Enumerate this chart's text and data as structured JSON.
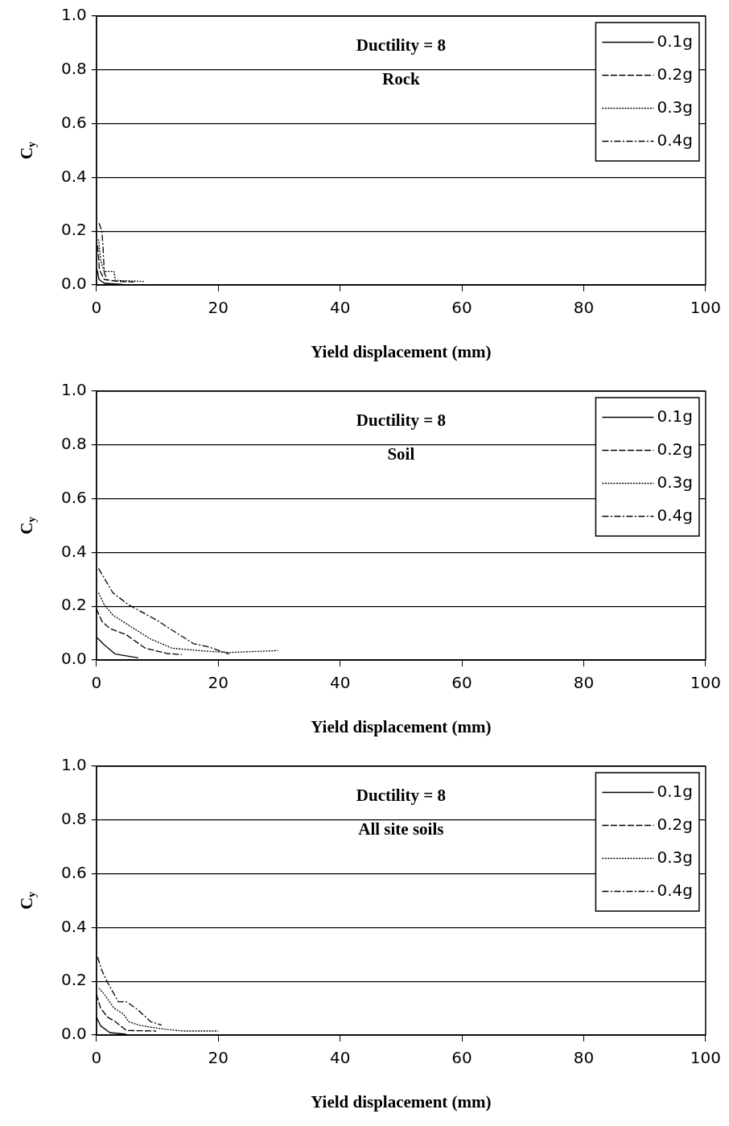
{
  "chart_data": [
    {
      "type": "line",
      "xlabel": "Yield displacement (mm)",
      "ylabel": "C$_{y}$",
      "annotations": [
        "Ductility = 8",
        "Rock"
      ],
      "xlim": [
        0,
        100
      ],
      "xticks": [
        0,
        20,
        40,
        60,
        80,
        100
      ],
      "ylim": [
        0,
        1
      ],
      "yticks": [
        {
          "value": 0,
          "label": "0.0"
        },
        {
          "value": 0.2,
          "label": "0.2"
        },
        {
          "value": 0.4,
          "label": "0.4"
        },
        {
          "value": 0.6,
          "label": "0.6"
        },
        {
          "value": 0.8,
          "label": "0.8"
        },
        {
          "value": 1,
          "label": "1.0"
        }
      ],
      "grid": "y",
      "legend": "top right",
      "marker": "none",
      "series": [
        {
          "name": "0.1g",
          "color": "#000000",
          "line_style": "solid",
          "x": [
            0.13,
            0.44,
            1.3,
            4.4
          ],
          "values": [
            0.056,
            0.02,
            0.006,
            0.002
          ]
        },
        {
          "name": "0.2g",
          "color": "#000000",
          "line_style": "dashed",
          "x": [
            0.2,
            0.5,
            1.3,
            3.6,
            6.2
          ],
          "values": [
            0.146,
            0.056,
            0.02,
            0.013,
            0.011
          ]
        },
        {
          "name": "0.3g",
          "color": "#000000",
          "line_style": "dotted",
          "x": [
            0.36,
            0.7,
            1.3,
            2.9,
            3.1,
            7.8
          ],
          "values": [
            0.17,
            0.09,
            0.05,
            0.05,
            0.017,
            0.013
          ]
        },
        {
          "name": "0.4g",
          "color": "#000000",
          "line_style": "dashdot",
          "x": [
            0.44,
            0.9,
            1.1,
            1.3,
            1.8
          ],
          "values": [
            0.23,
            0.2,
            0.135,
            0.045,
            0.017
          ]
        }
      ]
    },
    {
      "type": "line",
      "xlabel": "Yield displacement (mm)",
      "ylabel": "C$_{y}$",
      "annotations": [
        "Ductility = 8",
        "Soil"
      ],
      "xlim": [
        0,
        100
      ],
      "xticks": [
        0,
        20,
        40,
        60,
        80,
        100
      ],
      "ylim": [
        0,
        1
      ],
      "yticks": [
        {
          "value": 0,
          "label": "0.0"
        },
        {
          "value": 0.2,
          "label": "0.2"
        },
        {
          "value": 0.4,
          "label": "0.4"
        },
        {
          "value": 0.6,
          "label": "0.6"
        },
        {
          "value": 0.8,
          "label": "0.8"
        },
        {
          "value": 1,
          "label": "1.0"
        }
      ],
      "grid": "y",
      "legend": "top right",
      "marker": "none",
      "series": [
        {
          "name": "0.1g",
          "color": "#000000",
          "line_style": "solid",
          "x": [
            0.1,
            1.3,
            3.1,
            6.9
          ],
          "values": [
            0.083,
            0.056,
            0.022,
            0.008
          ]
        },
        {
          "name": "0.2g",
          "color": "#000000",
          "line_style": "dashed",
          "x": [
            0,
            0.9,
            2.2,
            4.9,
            8,
            11.6,
            14
          ],
          "values": [
            0.19,
            0.144,
            0.117,
            0.094,
            0.044,
            0.024,
            0.02
          ]
        },
        {
          "name": "0.3g",
          "color": "#000000",
          "line_style": "dotted",
          "x": [
            0.36,
            1.3,
            2.7,
            5.8,
            8.9,
            12.4,
            17.8,
            21.8,
            29.8
          ],
          "values": [
            0.25,
            0.205,
            0.167,
            0.122,
            0.078,
            0.044,
            0.033,
            0.028,
            0.035
          ]
        },
        {
          "name": "0.4g",
          "color": "#000000",
          "line_style": "dashdot",
          "x": [
            0.36,
            2.7,
            5.3,
            10,
            11.8,
            16,
            18.2,
            21.8
          ],
          "values": [
            0.34,
            0.25,
            0.205,
            0.147,
            0.12,
            0.06,
            0.05,
            0.022
          ]
        }
      ]
    },
    {
      "type": "line",
      "xlabel": "Yield displacement (mm)",
      "ylabel": "C$_{y}$",
      "annotations": [
        "Ductility = 8",
        "All site soils"
      ],
      "xlim": [
        0,
        100
      ],
      "xticks": [
        0,
        20,
        40,
        60,
        80,
        100
      ],
      "ylim": [
        0,
        1
      ],
      "yticks": [
        {
          "value": 0,
          "label": "0.0"
        },
        {
          "value": 0.2,
          "label": "0.2"
        },
        {
          "value": 0.4,
          "label": "0.4"
        },
        {
          "value": 0.6,
          "label": "0.6"
        },
        {
          "value": 0.8,
          "label": "0.8"
        },
        {
          "value": 1,
          "label": "1.0"
        }
      ],
      "grid": "y",
      "legend": "top right",
      "marker": "none",
      "series": [
        {
          "name": "0.1g",
          "color": "#000000",
          "line_style": "solid",
          "x": [
            0,
            0.7,
            2.2,
            4.9
          ],
          "values": [
            0.067,
            0.034,
            0.009,
            0.003
          ]
        },
        {
          "name": "0.2g",
          "color": "#000000",
          "line_style": "dashed",
          "x": [
            0,
            0.7,
            1.8,
            3.1,
            4.9,
            9.8
          ],
          "values": [
            0.152,
            0.1,
            0.067,
            0.05,
            0.017,
            0.015
          ]
        },
        {
          "name": "0.3g",
          "color": "#000000",
          "line_style": "dotted",
          "x": [
            0.44,
            1.3,
            2.9,
            4.4,
            5.3,
            7.1,
            11.1,
            14.2,
            20
          ],
          "values": [
            0.174,
            0.152,
            0.1,
            0.079,
            0.05,
            0.036,
            0.022,
            0.015,
            0.015
          ]
        },
        {
          "name": "0.4g",
          "color": "#000000",
          "line_style": "dashdot",
          "x": [
            0.2,
            0.9,
            1.8,
            3.6,
            4.9,
            6.7,
            8.9,
            10.7
          ],
          "values": [
            0.29,
            0.24,
            0.197,
            0.124,
            0.124,
            0.096,
            0.05,
            0.037
          ]
        }
      ]
    }
  ]
}
